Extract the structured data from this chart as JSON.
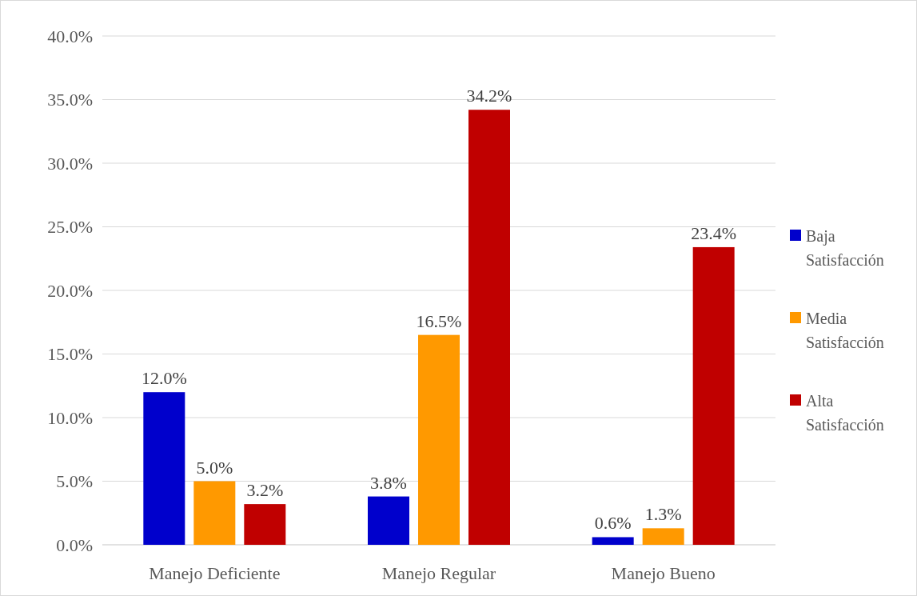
{
  "chart_data": {
    "type": "bar",
    "categories": [
      "Manejo Deficiente",
      "Manejo Regular",
      "Manejo Bueno"
    ],
    "series": [
      {
        "name": "Baja Satisfacción",
        "color": "#0000cc",
        "values": [
          12.0,
          3.8,
          0.6
        ],
        "value_labels": [
          "12.0%",
          "3.8%",
          "0.6%"
        ]
      },
      {
        "name": "Media Satisfacción",
        "color": "#ff9900",
        "values": [
          5.0,
          16.5,
          1.3
        ],
        "value_labels": [
          "5.0%",
          "16.5%",
          "1.3%"
        ]
      },
      {
        "name": "Alta Satisfacción",
        "color": "#c00000",
        "values": [
          3.2,
          34.2,
          23.4
        ],
        "value_labels": [
          "3.2%",
          "34.2%",
          "23.4%"
        ]
      }
    ],
    "ylim": [
      0,
      40
    ],
    "yticks": [
      {
        "value": 0,
        "label": "0.0%"
      },
      {
        "value": 5,
        "label": "5.0%"
      },
      {
        "value": 10,
        "label": "10.0%"
      },
      {
        "value": 15,
        "label": "15.0%"
      },
      {
        "value": 20,
        "label": "20.0%"
      },
      {
        "value": 25,
        "label": "25.0%"
      },
      {
        "value": 30,
        "label": "30.0%"
      },
      {
        "value": 35,
        "label": "35.0%"
      },
      {
        "value": 40,
        "label": "40.0%"
      }
    ],
    "grid": "y",
    "legend": "right"
  }
}
